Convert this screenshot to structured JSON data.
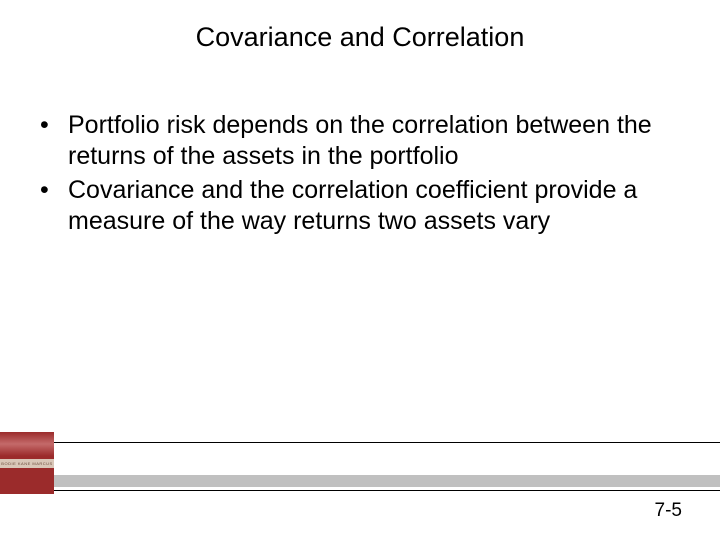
{
  "title": "Covariance and Correlation",
  "bullets": [
    "Portfolio risk depends on the correlation between the returns of the assets in the portfolio",
    "Covariance and the correlation coefficient provide a measure of the way returns two assets vary"
  ],
  "page_number": "7-5",
  "book_label": "BODIE  KANE  MARCUS",
  "colors": {
    "background": "#ffffff",
    "text": "#000000",
    "footer_gray": "#c0c0c0",
    "book_main": "#9b2b2b",
    "book_strip": "#d9c7b8"
  }
}
